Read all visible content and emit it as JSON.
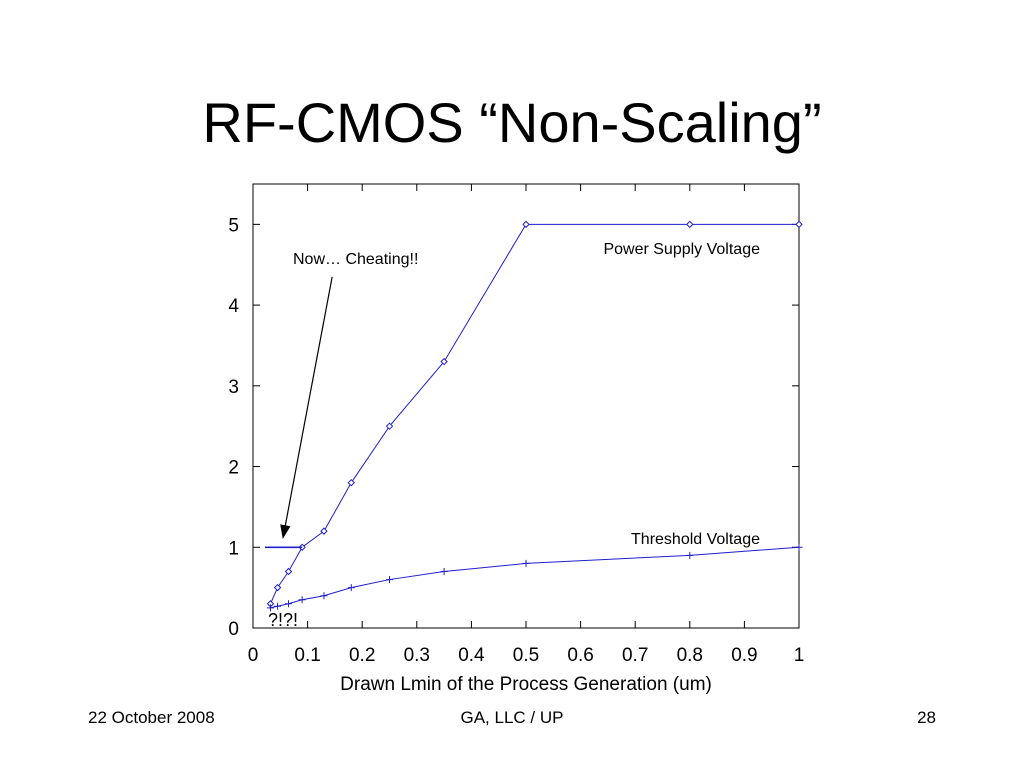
{
  "slide": {
    "title": "RF-CMOS “Non-Scaling”",
    "footer_date": "22 October 2008",
    "footer_org": "GA, LLC / UP",
    "footer_page": "28"
  },
  "colors": {
    "series": "#1f1fd0",
    "axis": "#000000",
    "background": "#ffffff"
  },
  "chart_data": {
    "type": "line",
    "title": "",
    "xlabel": "Drawn Lmin of the Process Generation (um)",
    "ylabel": "",
    "xlim": [
      0,
      1
    ],
    "ylim": [
      0,
      5.5
    ],
    "grid": false,
    "x_ticks": [
      "0",
      "0.1",
      "0.2",
      "0.3",
      "0.4",
      "0.5",
      "0.6",
      "0.7",
      "0.8",
      "0.9",
      "1"
    ],
    "y_ticks": [
      "0",
      "1",
      "2",
      "3",
      "4",
      "5"
    ],
    "series": [
      {
        "name": "Power Supply Voltage",
        "marker": "diamond",
        "x": [
          0.032,
          0.045,
          0.065,
          0.09,
          0.13,
          0.18,
          0.25,
          0.35,
          0.5,
          0.8,
          1.0
        ],
        "y": [
          0.3,
          0.5,
          0.7,
          1.0,
          1.2,
          1.8,
          2.5,
          3.3,
          5.0,
          5.0,
          5.0
        ]
      },
      {
        "name": "Threshold Voltage",
        "marker": "plus",
        "x": [
          0.032,
          0.045,
          0.065,
          0.09,
          0.13,
          0.18,
          0.25,
          0.35,
          0.5,
          0.8,
          1.0
        ],
        "y": [
          0.25,
          0.27,
          0.3,
          0.35,
          0.4,
          0.5,
          0.6,
          0.7,
          0.8,
          0.9,
          1.0
        ]
      }
    ],
    "annotations": {
      "cheating_label": "Now… Cheating!!",
      "question_label": "?!?!",
      "cheating_line": {
        "x": [
          0.022,
          0.09
        ],
        "y": [
          1.0,
          1.0
        ]
      },
      "arrow_tip": {
        "x": 0.055,
        "y": 1.12
      },
      "arrow_tail": {
        "x": 0.145,
        "y": 4.35
      }
    }
  }
}
